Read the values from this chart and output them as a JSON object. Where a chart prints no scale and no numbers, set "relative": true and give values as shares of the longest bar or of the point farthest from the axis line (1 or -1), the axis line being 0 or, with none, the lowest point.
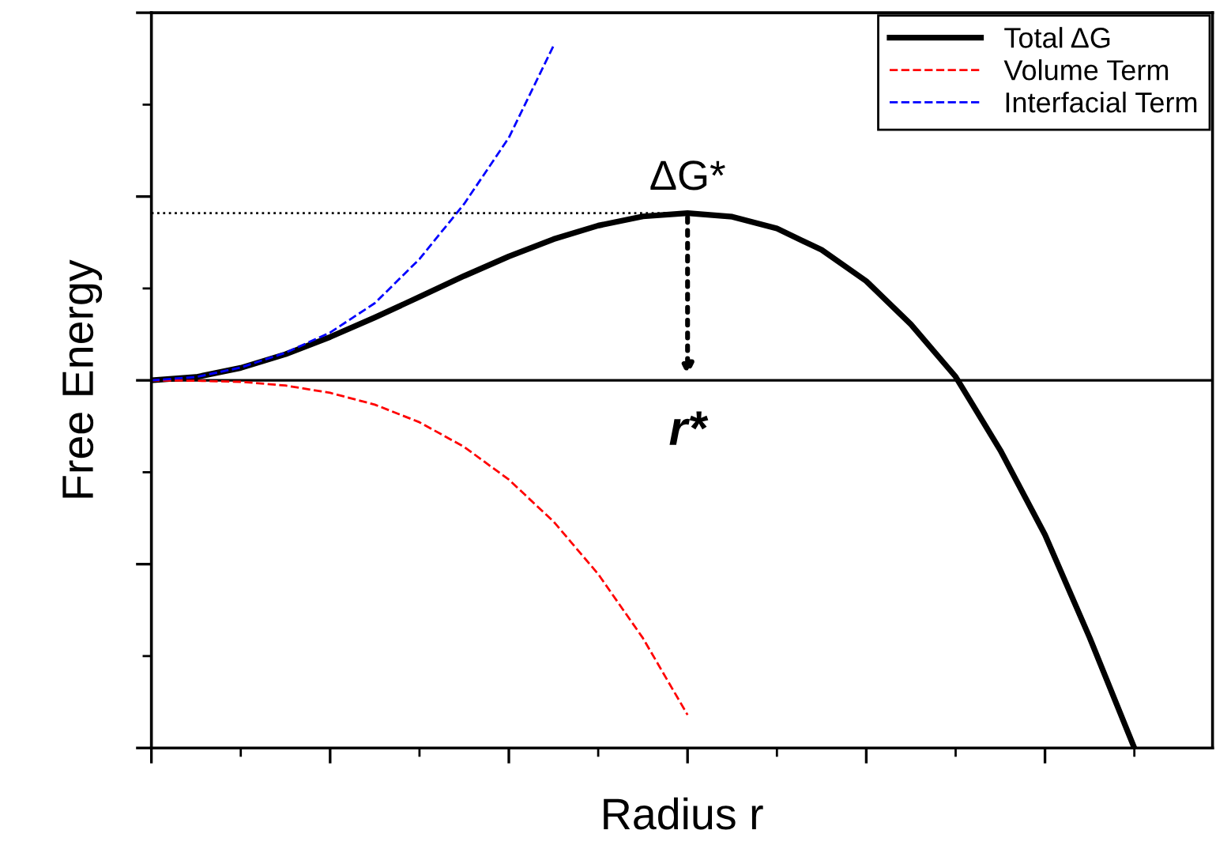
{
  "chart_data": {
    "type": "line",
    "relative": true,
    "xlabel": "Radius r",
    "ylabel": "Free Energy",
    "categories": [
      null,
      null,
      null,
      null,
      null,
      null,
      null,
      null,
      null,
      null,
      null,
      null,
      null,
      null,
      null,
      null,
      null,
      null,
      null,
      null,
      null,
      null,
      null,
      null
    ],
    "series": [
      {
        "name": "Total ΔG",
        "color": "#000000",
        "line_style": "solid",
        "values": [
          0,
          0.009,
          0.034,
          0.071,
          0.118,
          0.171,
          0.227,
          0.284,
          0.337,
          0.384,
          0.421,
          0.446,
          0.455,
          0.445,
          0.413,
          0.355,
          0.27,
          0.152,
          0.01,
          -0.19,
          -0.42,
          -0.7,
          -1.0,
          null
        ]
      },
      {
        "name": "Volume Term",
        "color": "#ff0000",
        "line_style": "dashed",
        "values": [
          0,
          -0.001,
          -0.004,
          -0.014,
          -0.034,
          -0.066,
          -0.114,
          -0.181,
          -0.27,
          -0.384,
          -0.527,
          -0.701,
          -0.91,
          null,
          null,
          null,
          null,
          null,
          null,
          null,
          null,
          null,
          null,
          null
        ]
      },
      {
        "name": "Interfacial Term",
        "color": "#0000ff",
        "line_style": "dashed",
        "values": [
          0,
          0.009,
          0.035,
          0.075,
          0.13,
          0.21,
          0.33,
          0.48,
          0.66,
          0.91,
          null,
          null,
          null,
          null,
          null,
          null,
          null,
          null,
          null,
          null,
          null,
          null,
          null,
          null
        ]
      }
    ],
    "ref_lines": [
      {
        "axis": "y",
        "value": 0,
        "color": "#000000",
        "line_style": "solid"
      },
      {
        "axis": "y",
        "value": 0.455,
        "color": "#000000",
        "line_style": "dotted"
      }
    ],
    "annotations": [
      "ΔG*",
      "r*"
    ],
    "legend": "top right",
    "grid": false,
    "marker": "none"
  }
}
